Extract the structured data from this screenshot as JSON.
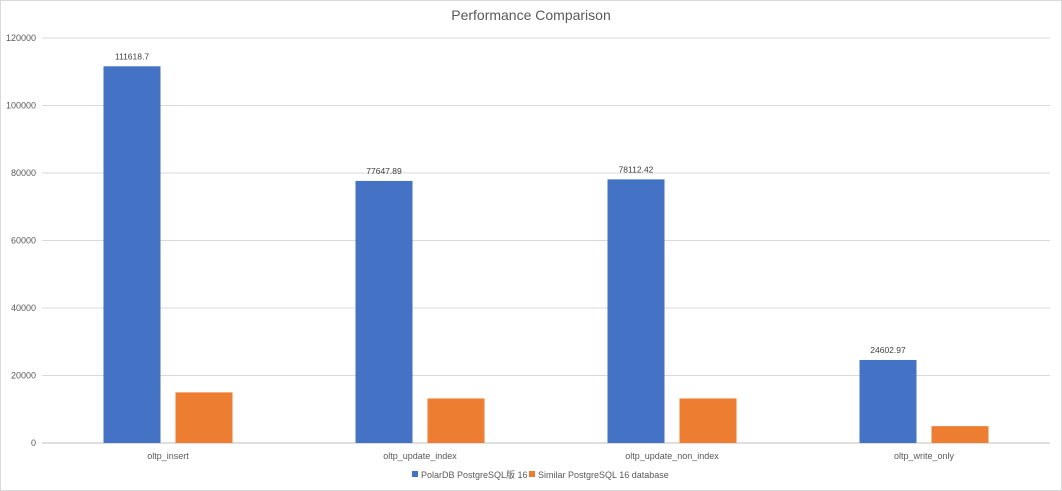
{
  "chart_data": {
    "type": "bar",
    "title": "Performance Comparison",
    "xlabel": "",
    "ylabel": "",
    "ylim": [
      0,
      120000
    ],
    "yticks": [
      0,
      20000,
      40000,
      60000,
      80000,
      100000,
      120000
    ],
    "ytick_labels": [
      "0",
      "20000",
      "40000",
      "60000",
      "80000",
      "100000",
      "120000"
    ],
    "grid": true,
    "legend_position": "bottom",
    "categories": [
      "oltp_insert",
      "oltp_update_index",
      "oltp_update_non_index",
      "oltp_write_only"
    ],
    "series": [
      {
        "name": "PolarDB PostgreSQL版 16",
        "color": "#4472C4",
        "values": [
          111618.7,
          77647.89,
          78112.42,
          24602.97
        ],
        "data_labels": [
          "111618.7",
          "77647.89",
          "78112.42",
          "24602.97"
        ]
      },
      {
        "name": "Similar PostgreSQL 16 database",
        "color": "#ED7D31",
        "values": [
          15000,
          13200,
          13200,
          5000
        ],
        "data_labels": []
      }
    ]
  }
}
